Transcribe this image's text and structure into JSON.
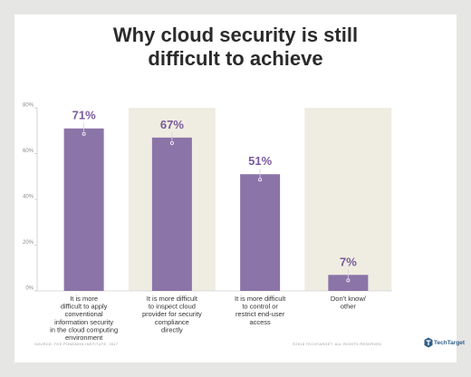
{
  "title_lines": [
    "Why cloud security is still",
    "difficult to achieve"
  ],
  "source": "SOURCE: THE PONEMON INSTITUTE, 2017",
  "copyright": "©2018 TECHTARGET. ALL RIGHTS RESERVED",
  "brand": {
    "name": "TechTarget",
    "color": "#2f5f8a"
  },
  "colors": {
    "bar": "#8b74a8",
    "bar_label": "#7a5a9c",
    "band": "#efede1",
    "background": "#e6e6e4",
    "card": "#ffffff"
  },
  "chart_data": {
    "type": "bar",
    "categories": [
      "It is more difficult to apply conventional information security in the cloud computing environment",
      "It is more difficult to inspect cloud provider for security compliance directly",
      "It is more difficult to control or restrict end-user access",
      "Don't know/ other"
    ],
    "category_lines": [
      [
        "It is more",
        "difficult to apply",
        "conventional",
        "information security",
        "in the cloud computing",
        "environment"
      ],
      [
        "It is more difficult",
        "to inspect cloud",
        "provider for security",
        "compliance",
        "directly"
      ],
      [
        "It is more difficult",
        "to control or",
        "restrict end-user",
        "access"
      ],
      [
        "Don't know/",
        "other"
      ]
    ],
    "values": [
      71,
      67,
      51,
      7
    ],
    "value_labels": [
      "71%",
      "67%",
      "51%",
      "7%"
    ],
    "yticks": [
      0,
      20,
      40,
      60,
      80
    ],
    "ytick_labels": [
      "0%",
      "20%",
      "40%",
      "60%",
      "80%"
    ],
    "ylim": [
      0,
      80
    ],
    "shaded_bands": [
      false,
      true,
      false,
      true
    ],
    "xlabel": "",
    "ylabel": ""
  }
}
